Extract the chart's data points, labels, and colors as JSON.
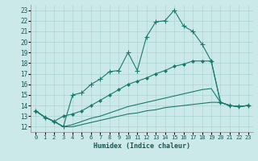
{
  "xlabel": "Humidex (Indice chaleur)",
  "background_color": "#cce9e9",
  "grid_color": "#aad4d4",
  "line_color": "#1a7a6e",
  "xlim": [
    -0.5,
    23.5
  ],
  "ylim": [
    11.5,
    23.5
  ],
  "xticks": [
    0,
    1,
    2,
    3,
    4,
    5,
    6,
    7,
    8,
    9,
    10,
    11,
    12,
    13,
    14,
    15,
    16,
    17,
    18,
    19,
    20,
    21,
    22,
    23
  ],
  "yticks": [
    12,
    13,
    14,
    15,
    16,
    17,
    18,
    19,
    20,
    21,
    22,
    23
  ],
  "series": [
    {
      "x": [
        0,
        1,
        2,
        3,
        4,
        5,
        6,
        7,
        8,
        9,
        10,
        11,
        12,
        13,
        14,
        15,
        16,
        17,
        18,
        19,
        20,
        21,
        22,
        23
      ],
      "y": [
        13.5,
        12.9,
        12.5,
        12.0,
        15.0,
        15.2,
        16.0,
        16.5,
        17.2,
        17.3,
        19.0,
        17.3,
        20.5,
        21.9,
        22.0,
        23.0,
        21.5,
        21.0,
        19.8,
        18.2,
        14.3,
        14.0,
        13.9,
        14.0
      ],
      "marker": "+"
    },
    {
      "x": [
        0,
        1,
        2,
        3,
        4,
        5,
        6,
        7,
        8,
        9,
        10,
        11,
        12,
        13,
        14,
        15,
        16,
        17,
        18,
        19,
        20,
        21,
        22,
        23
      ],
      "y": [
        13.5,
        12.9,
        12.5,
        13.0,
        13.2,
        13.5,
        14.0,
        14.5,
        15.0,
        15.5,
        16.0,
        16.3,
        16.6,
        17.0,
        17.3,
        17.7,
        17.9,
        18.2,
        18.2,
        18.2,
        14.3,
        14.0,
        13.9,
        14.0
      ],
      "marker": "D"
    },
    {
      "x": [
        0,
        1,
        2,
        3,
        4,
        5,
        6,
        7,
        8,
        9,
        10,
        11,
        12,
        13,
        14,
        15,
        16,
        17,
        18,
        19,
        20,
        21,
        22,
        23
      ],
      "y": [
        13.5,
        12.9,
        12.5,
        12.0,
        12.2,
        12.5,
        12.8,
        13.0,
        13.3,
        13.6,
        13.9,
        14.1,
        14.3,
        14.5,
        14.7,
        14.9,
        15.1,
        15.3,
        15.5,
        15.6,
        14.3,
        14.0,
        13.9,
        14.0
      ],
      "marker": null
    },
    {
      "x": [
        0,
        1,
        2,
        3,
        4,
        5,
        6,
        7,
        8,
        9,
        10,
        11,
        12,
        13,
        14,
        15,
        16,
        17,
        18,
        19,
        20,
        21,
        22,
        23
      ],
      "y": [
        13.5,
        12.9,
        12.5,
        12.0,
        12.0,
        12.2,
        12.4,
        12.6,
        12.8,
        13.0,
        13.2,
        13.3,
        13.5,
        13.6,
        13.8,
        13.9,
        14.0,
        14.1,
        14.2,
        14.3,
        14.3,
        14.0,
        13.9,
        14.0
      ],
      "marker": null
    }
  ]
}
